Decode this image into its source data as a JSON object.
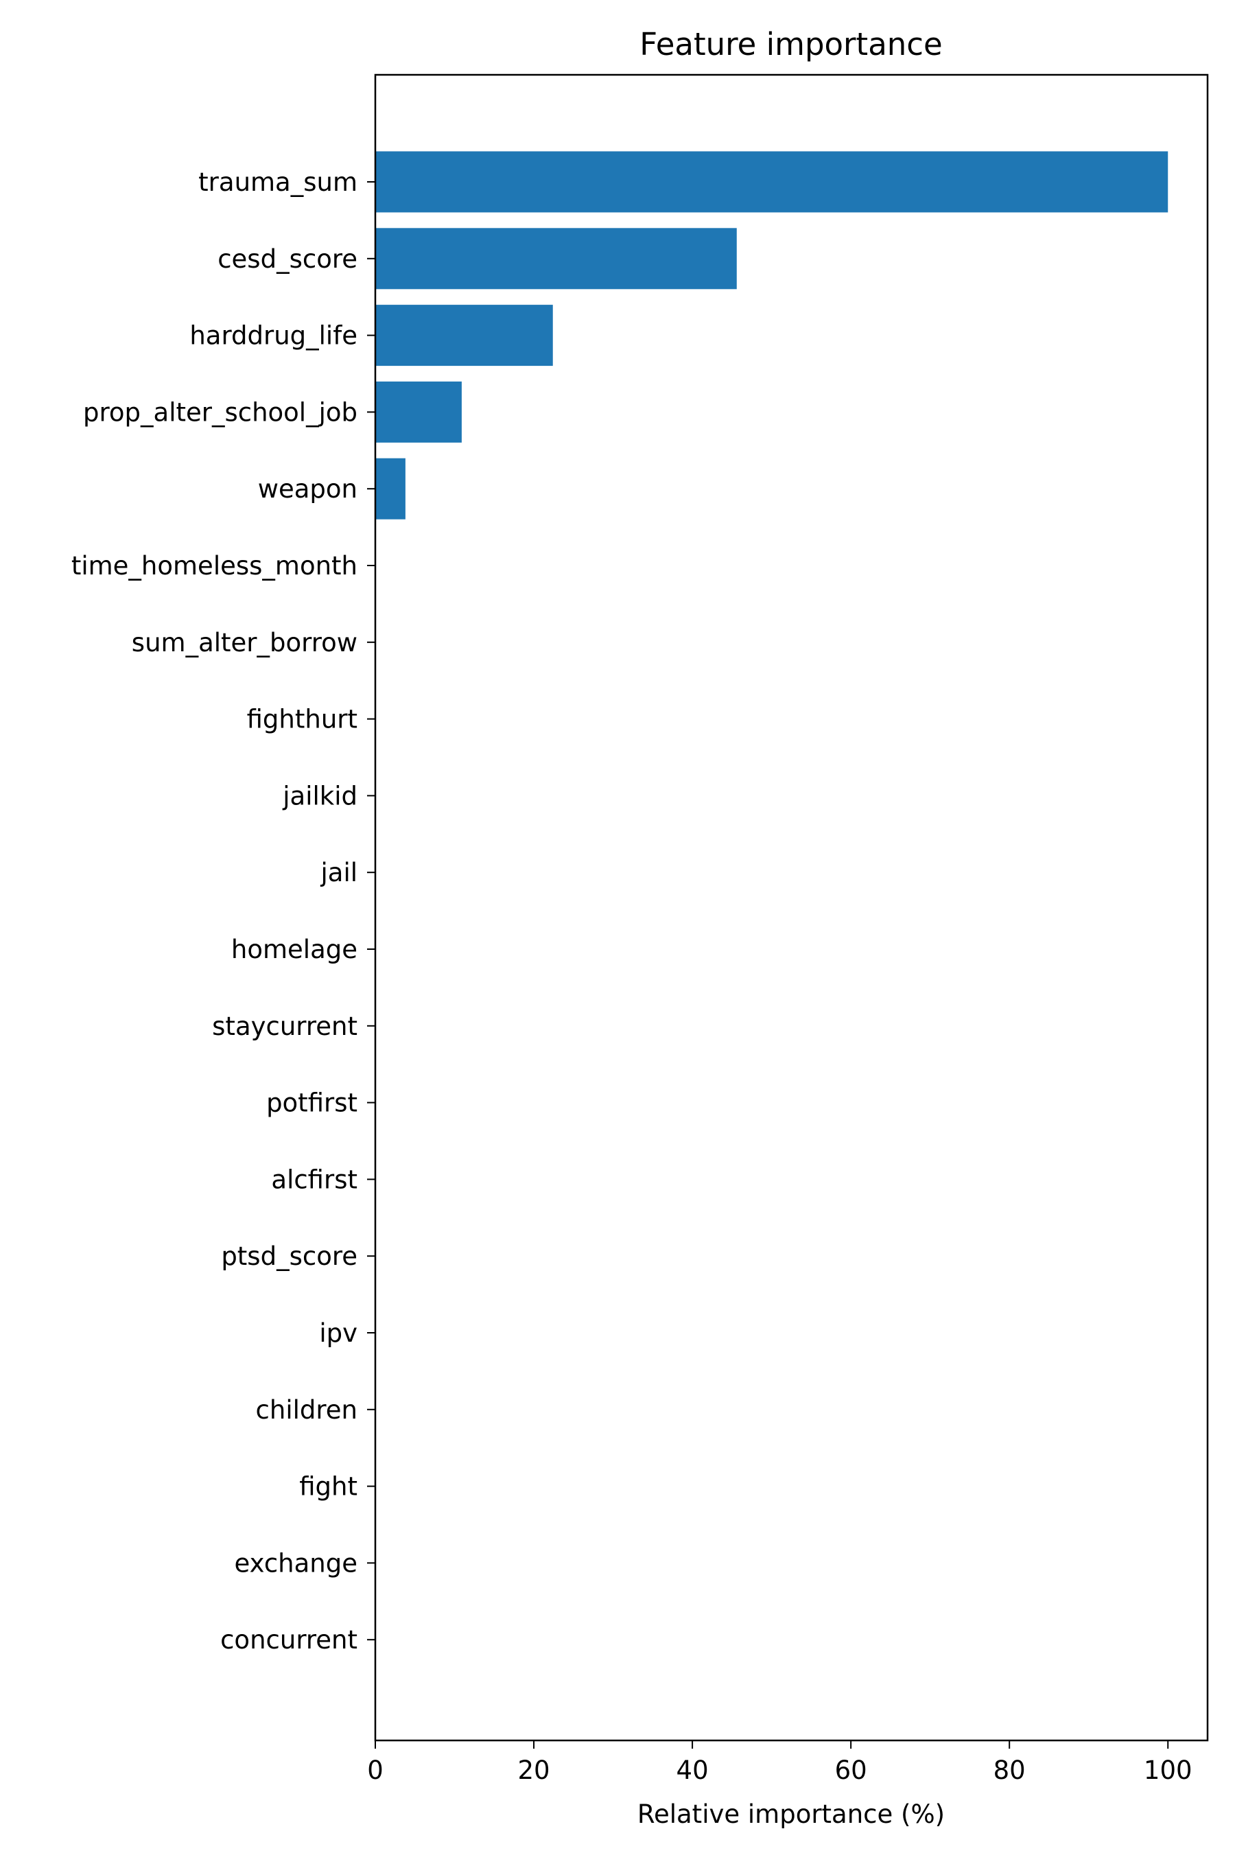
{
  "chart_data": {
    "type": "bar",
    "orientation": "horizontal",
    "title": "Feature importance",
    "xlabel": "Relative importance (%)",
    "ylabel": "",
    "xlim": [
      0,
      105
    ],
    "xticks": [
      0,
      20,
      40,
      60,
      80,
      100
    ],
    "grid": false,
    "legend": "none",
    "bar_color": "#1f77b4",
    "categories": [
      "trauma_sum",
      "cesd_score",
      "harddrug_life",
      "prop_alter_school_job",
      "weapon",
      "time_homeless_month",
      "sum_alter_borrow",
      "fighthurt",
      "jailkid",
      "jail",
      "homelage",
      "staycurrent",
      "potfirst",
      "alcfirst",
      "ptsd_score",
      "ipv",
      "children",
      "fight",
      "exchange",
      "concurrent"
    ],
    "values": [
      100,
      45.6,
      22.4,
      10.9,
      3.8,
      0,
      0,
      0,
      0,
      0,
      0,
      0,
      0,
      0,
      0,
      0,
      0,
      0,
      0,
      0
    ]
  }
}
